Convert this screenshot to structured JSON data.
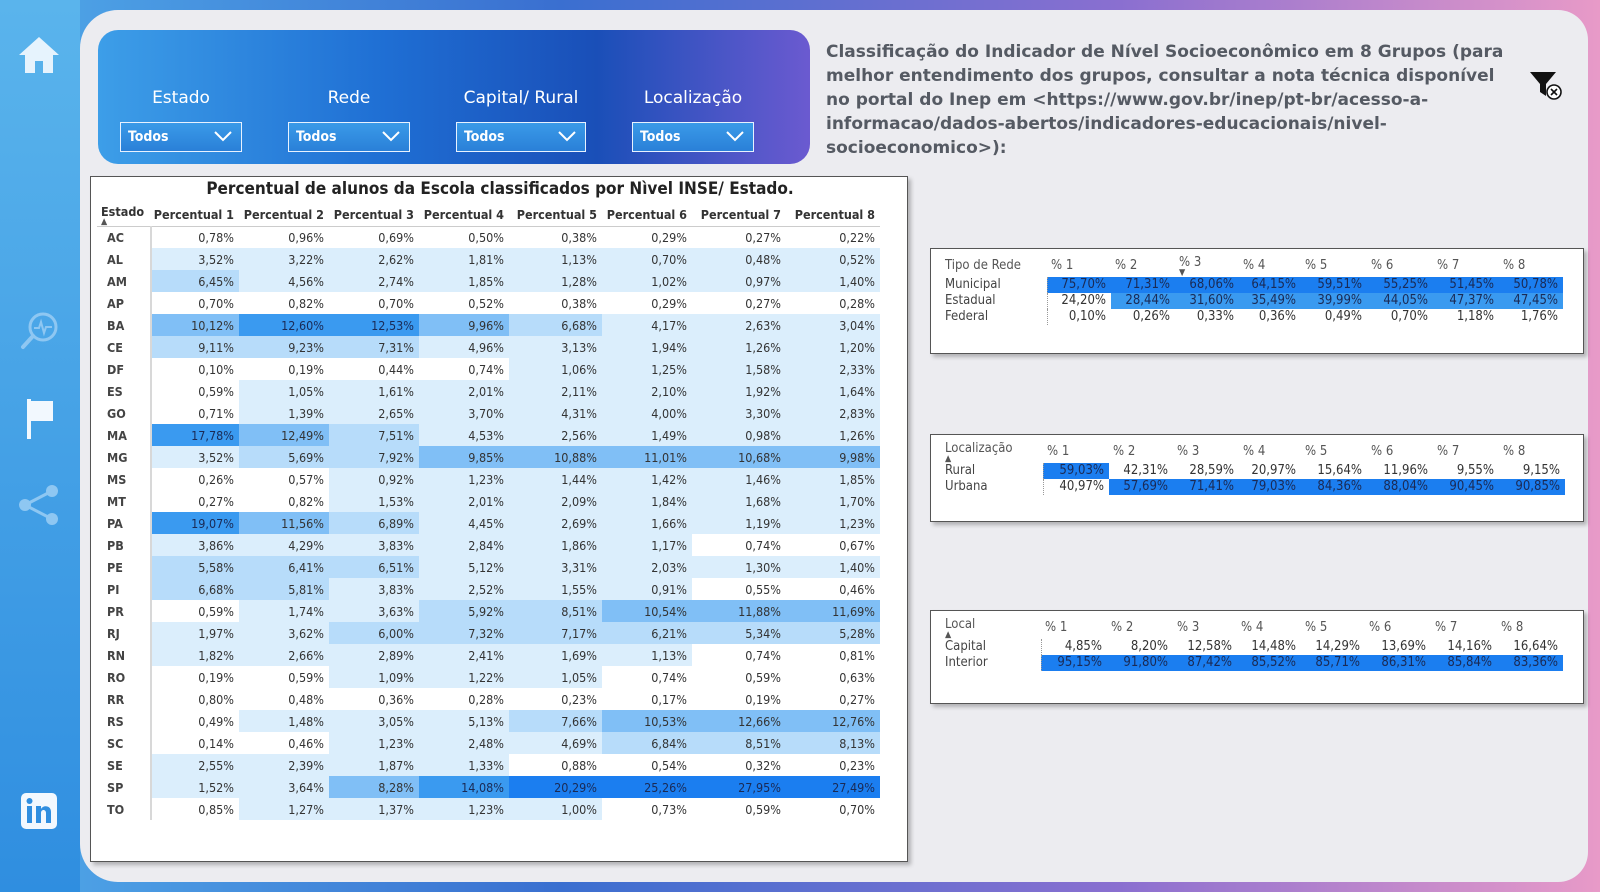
{
  "colors": {
    "c0": "#ffffff",
    "c1": "#dbeefc",
    "c2": "#b7dcfa",
    "c3": "#80bff6",
    "c4": "#3a9af0",
    "c5": "#1b7ef0"
  },
  "slicers": [
    {
      "label": "Estado",
      "value": "Todos"
    },
    {
      "label": "Rede",
      "value": "Todos"
    },
    {
      "label": "Capital/ Rural",
      "value": "Todos"
    },
    {
      "label": "Localização",
      "value": "Todos"
    }
  ],
  "description": "Classificação do Indicador de Nível Socioeconômico em 8 Grupos (para melhor entendimento dos grupos, consultar a nota técnica disponível no portal do Inep em <https://www.gov.br/inep/pt-br/acesso-a-informacao/dados-abertos/indicadores-educacionais/nivel-socioeconomico>):",
  "main_table": {
    "title": "Percentual de alunos da Escola classificados por Nìvel INSE/ Estado.",
    "headers": [
      "Estado",
      "Percentual 1",
      "Percentual 2",
      "Percentual 3",
      "Percentual 4",
      "Percentual 5",
      "Percentual 6",
      "Percentual 7",
      "Percentual 8"
    ],
    "rows": [
      {
        "estado": "AC",
        "values": [
          "0,78%",
          "0,96%",
          "0,69%",
          "0,50%",
          "0,38%",
          "0,29%",
          "0,27%",
          "0,22%"
        ],
        "levels": [
          0,
          0,
          0,
          0,
          0,
          0,
          0,
          0
        ]
      },
      {
        "estado": "AL",
        "values": [
          "3,52%",
          "3,22%",
          "2,62%",
          "1,81%",
          "1,13%",
          "0,70%",
          "0,48%",
          "0,52%"
        ],
        "levels": [
          1,
          1,
          1,
          1,
          1,
          1,
          1,
          1
        ]
      },
      {
        "estado": "AM",
        "values": [
          "6,45%",
          "4,56%",
          "2,74%",
          "1,85%",
          "1,28%",
          "1,02%",
          "0,97%",
          "1,40%"
        ],
        "levels": [
          2,
          1,
          1,
          1,
          1,
          1,
          1,
          1
        ]
      },
      {
        "estado": "AP",
        "values": [
          "0,70%",
          "0,82%",
          "0,70%",
          "0,52%",
          "0,38%",
          "0,29%",
          "0,27%",
          "0,28%"
        ],
        "levels": [
          0,
          0,
          0,
          0,
          0,
          0,
          0,
          0
        ]
      },
      {
        "estado": "BA",
        "values": [
          "10,12%",
          "12,60%",
          "12,53%",
          "9,96%",
          "6,68%",
          "4,17%",
          "2,63%",
          "3,04%"
        ],
        "levels": [
          3,
          4,
          4,
          3,
          2,
          1,
          1,
          1
        ]
      },
      {
        "estado": "CE",
        "values": [
          "9,11%",
          "9,23%",
          "7,31%",
          "4,96%",
          "3,13%",
          "1,94%",
          "1,26%",
          "1,20%"
        ],
        "levels": [
          2,
          2,
          2,
          1,
          1,
          1,
          1,
          1
        ]
      },
      {
        "estado": "DF",
        "values": [
          "0,10%",
          "0,19%",
          "0,44%",
          "0,74%",
          "1,06%",
          "1,25%",
          "1,58%",
          "2,33%"
        ],
        "levels": [
          0,
          0,
          0,
          0,
          1,
          1,
          1,
          1
        ]
      },
      {
        "estado": "ES",
        "values": [
          "0,59%",
          "1,05%",
          "1,61%",
          "2,01%",
          "2,11%",
          "2,10%",
          "1,92%",
          "1,64%"
        ],
        "levels": [
          0,
          1,
          1,
          1,
          1,
          1,
          1,
          1
        ]
      },
      {
        "estado": "GO",
        "values": [
          "0,71%",
          "1,39%",
          "2,65%",
          "3,70%",
          "4,31%",
          "4,00%",
          "3,30%",
          "2,83%"
        ],
        "levels": [
          0,
          1,
          1,
          1,
          1,
          1,
          1,
          1
        ]
      },
      {
        "estado": "MA",
        "values": [
          "17,78%",
          "12,49%",
          "7,51%",
          "4,53%",
          "2,56%",
          "1,49%",
          "0,98%",
          "1,26%"
        ],
        "levels": [
          4,
          3,
          2,
          1,
          1,
          1,
          1,
          1
        ]
      },
      {
        "estado": "MG",
        "values": [
          "3,52%",
          "5,69%",
          "7,92%",
          "9,85%",
          "10,88%",
          "11,01%",
          "10,68%",
          "9,98%"
        ],
        "levels": [
          1,
          2,
          2,
          3,
          3,
          3,
          3,
          3
        ]
      },
      {
        "estado": "MS",
        "values": [
          "0,26%",
          "0,57%",
          "0,92%",
          "1,23%",
          "1,44%",
          "1,42%",
          "1,46%",
          "1,85%"
        ],
        "levels": [
          0,
          0,
          1,
          1,
          1,
          1,
          1,
          1
        ]
      },
      {
        "estado": "MT",
        "values": [
          "0,27%",
          "0,82%",
          "1,53%",
          "2,01%",
          "2,09%",
          "1,84%",
          "1,68%",
          "1,70%"
        ],
        "levels": [
          0,
          0,
          1,
          1,
          1,
          1,
          1,
          1
        ]
      },
      {
        "estado": "PA",
        "values": [
          "19,07%",
          "11,56%",
          "6,89%",
          "4,45%",
          "2,69%",
          "1,66%",
          "1,19%",
          "1,23%"
        ],
        "levels": [
          4,
          3,
          2,
          1,
          1,
          1,
          1,
          1
        ]
      },
      {
        "estado": "PB",
        "values": [
          "3,86%",
          "4,29%",
          "3,83%",
          "2,84%",
          "1,86%",
          "1,17%",
          "0,74%",
          "0,67%"
        ],
        "levels": [
          1,
          1,
          1,
          1,
          1,
          1,
          0,
          0
        ]
      },
      {
        "estado": "PE",
        "values": [
          "5,58%",
          "6,41%",
          "6,51%",
          "5,12%",
          "3,31%",
          "2,03%",
          "1,30%",
          "1,40%"
        ],
        "levels": [
          2,
          2,
          2,
          1,
          1,
          1,
          1,
          1
        ]
      },
      {
        "estado": "PI",
        "values": [
          "6,68%",
          "5,81%",
          "3,83%",
          "2,52%",
          "1,55%",
          "0,91%",
          "0,55%",
          "0,46%"
        ],
        "levels": [
          2,
          2,
          1,
          1,
          1,
          1,
          0,
          0
        ]
      },
      {
        "estado": "PR",
        "values": [
          "0,59%",
          "1,74%",
          "3,63%",
          "5,92%",
          "8,51%",
          "10,54%",
          "11,88%",
          "11,69%"
        ],
        "levels": [
          0,
          1,
          1,
          2,
          2,
          3,
          3,
          3
        ]
      },
      {
        "estado": "RJ",
        "values": [
          "1,97%",
          "3,62%",
          "6,00%",
          "7,32%",
          "7,17%",
          "6,21%",
          "5,34%",
          "5,28%"
        ],
        "levels": [
          1,
          1,
          2,
          2,
          2,
          2,
          2,
          2
        ]
      },
      {
        "estado": "RN",
        "values": [
          "1,82%",
          "2,66%",
          "2,89%",
          "2,41%",
          "1,69%",
          "1,13%",
          "0,74%",
          "0,81%"
        ],
        "levels": [
          1,
          1,
          1,
          1,
          1,
          1,
          0,
          0
        ]
      },
      {
        "estado": "RO",
        "values": [
          "0,19%",
          "0,59%",
          "1,09%",
          "1,22%",
          "1,05%",
          "0,74%",
          "0,59%",
          "0,63%"
        ],
        "levels": [
          0,
          0,
          1,
          1,
          1,
          0,
          0,
          0
        ]
      },
      {
        "estado": "RR",
        "values": [
          "0,80%",
          "0,48%",
          "0,36%",
          "0,28%",
          "0,23%",
          "0,17%",
          "0,19%",
          "0,27%"
        ],
        "levels": [
          0,
          0,
          0,
          0,
          0,
          0,
          0,
          0
        ]
      },
      {
        "estado": "RS",
        "values": [
          "0,49%",
          "1,48%",
          "3,05%",
          "5,13%",
          "7,66%",
          "10,53%",
          "12,66%",
          "12,76%"
        ],
        "levels": [
          0,
          1,
          1,
          1,
          2,
          3,
          3,
          3
        ]
      },
      {
        "estado": "SC",
        "values": [
          "0,14%",
          "0,46%",
          "1,23%",
          "2,48%",
          "4,69%",
          "6,84%",
          "8,51%",
          "8,13%"
        ],
        "levels": [
          0,
          0,
          1,
          1,
          1,
          2,
          2,
          2
        ]
      },
      {
        "estado": "SE",
        "values": [
          "2,55%",
          "2,39%",
          "1,87%",
          "1,33%",
          "0,88%",
          "0,54%",
          "0,32%",
          "0,23%"
        ],
        "levels": [
          1,
          1,
          1,
          1,
          0,
          0,
          0,
          0
        ]
      },
      {
        "estado": "SP",
        "values": [
          "1,52%",
          "3,64%",
          "8,28%",
          "14,08%",
          "20,29%",
          "25,26%",
          "27,95%",
          "27,49%"
        ],
        "levels": [
          1,
          1,
          3,
          4,
          5,
          5,
          5,
          5
        ]
      },
      {
        "estado": "TO",
        "values": [
          "0,85%",
          "1,27%",
          "1,37%",
          "1,23%",
          "1,00%",
          "0,73%",
          "0,59%",
          "0,70%"
        ],
        "levels": [
          0,
          1,
          1,
          1,
          1,
          0,
          0,
          0
        ]
      }
    ]
  },
  "rede_table": {
    "headers": [
      "Tipo de Rede",
      "% 1",
      "% 2",
      "% 3",
      "% 4",
      "% 5",
      "% 6",
      "% 7",
      "% 8"
    ],
    "rows": [
      {
        "label": "Municipal",
        "values": [
          "75,70%",
          "71,31%",
          "68,06%",
          "64,15%",
          "59,51%",
          "55,25%",
          "51,45%",
          "50,78%"
        ],
        "levels": [
          5,
          5,
          5,
          5,
          5,
          5,
          5,
          5
        ]
      },
      {
        "label": "Estadual",
        "values": [
          "24,20%",
          "28,44%",
          "31,60%",
          "35,49%",
          "39,99%",
          "44,05%",
          "47,37%",
          "47,45%"
        ],
        "levels": [
          0,
          4,
          4,
          4,
          4,
          4,
          4,
          4
        ]
      },
      {
        "label": "Federal",
        "values": [
          "0,10%",
          "0,26%",
          "0,33%",
          "0,36%",
          "0,49%",
          "0,70%",
          "1,18%",
          "1,76%"
        ],
        "levels": [
          0,
          0,
          0,
          0,
          0,
          0,
          0,
          0
        ]
      }
    ]
  },
  "local_table": {
    "headers": [
      "Localização",
      "% 1",
      "% 2",
      "% 3",
      "% 4",
      "% 5",
      "% 6",
      "% 7",
      "% 8"
    ],
    "rows": [
      {
        "label": "Rural",
        "values": [
          "59,03%",
          "42,31%",
          "28,59%",
          "20,97%",
          "15,64%",
          "11,96%",
          "9,55%",
          "9,15%"
        ],
        "levels": [
          5,
          0,
          0,
          0,
          0,
          0,
          0,
          0
        ]
      },
      {
        "label": "Urbana",
        "values": [
          "40,97%",
          "57,69%",
          "71,41%",
          "79,03%",
          "84,36%",
          "88,04%",
          "90,45%",
          "90,85%"
        ],
        "levels": [
          0,
          5,
          5,
          5,
          5,
          5,
          5,
          5
        ]
      }
    ]
  },
  "capital_table": {
    "headers": [
      "Local",
      "% 1",
      "% 2",
      "% 3",
      "% 4",
      "% 5",
      "% 6",
      "% 7",
      "% 8"
    ],
    "rows": [
      {
        "label": "Capital",
        "values": [
          "4,85%",
          "8,20%",
          "12,58%",
          "14,48%",
          "14,29%",
          "13,69%",
          "14,16%",
          "16,64%"
        ],
        "levels": [
          0,
          0,
          0,
          0,
          0,
          0,
          0,
          0
        ]
      },
      {
        "label": "Interior",
        "values": [
          "95,15%",
          "91,80%",
          "87,42%",
          "85,52%",
          "85,71%",
          "86,31%",
          "85,84%",
          "83,36%"
        ],
        "levels": [
          5,
          5,
          5,
          5,
          5,
          5,
          5,
          5
        ]
      }
    ]
  }
}
